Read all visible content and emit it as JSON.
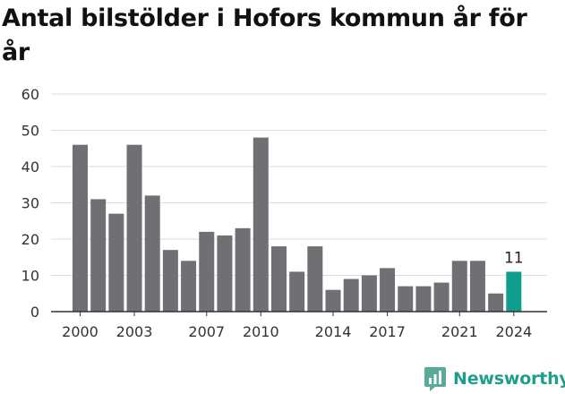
{
  "chart_data": {
    "type": "bar",
    "title": "Antal bilstölder i Hofors kommun år för år",
    "xlabel": "",
    "ylabel": "",
    "ylim": [
      0,
      60
    ],
    "yticks": [
      0,
      10,
      20,
      30,
      40,
      50,
      60
    ],
    "categories": [
      "2000",
      "2001",
      "2002",
      "2003",
      "2004",
      "2005",
      "2006",
      "2007",
      "2008",
      "2009",
      "2010",
      "2011",
      "2012",
      "2013",
      "2014",
      "2015",
      "2016",
      "2017",
      "2018",
      "2019",
      "2020",
      "2021",
      "2022",
      "2023",
      "2024"
    ],
    "values": [
      46,
      31,
      27,
      46,
      32,
      17,
      14,
      22,
      21,
      23,
      48,
      18,
      11,
      18,
      6,
      9,
      10,
      12,
      7,
      7,
      8,
      14,
      14,
      5,
      11
    ],
    "xtick_labels": [
      "2000",
      "2003",
      "2007",
      "2010",
      "2014",
      "2017",
      "2021",
      "2024"
    ],
    "highlight": {
      "category": "2024",
      "label": "11"
    },
    "grid": true,
    "colors": {
      "bar": "#707074",
      "highlight": "#0f9d8e",
      "grid": "#dddddd",
      "axis": "#333333"
    }
  },
  "brand": {
    "name": "Newsworthy",
    "icon": "newsworthy-logo-icon",
    "color": "#1f9e8c"
  }
}
